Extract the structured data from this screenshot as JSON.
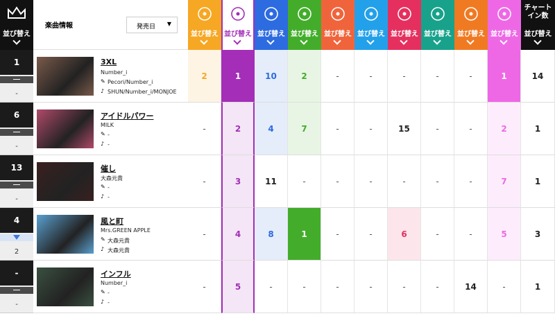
{
  "sidebar": {
    "sort_label": "並び替え"
  },
  "header": {
    "info_label": "楽曲情報",
    "release_label": "発売日"
  },
  "columns": [
    {
      "color": "#f6a723",
      "label": "並び替え"
    },
    {
      "color": "#a42eb8",
      "label": "並び替え",
      "selected": true
    },
    {
      "color": "#2d6be0",
      "label": "並び替え"
    },
    {
      "color": "#43ad2b",
      "label": "並び替え"
    },
    {
      "color": "#f0643c",
      "label": "並び替え"
    },
    {
      "color": "#23a0ea",
      "label": "並び替え"
    },
    {
      "color": "#e5305f",
      "label": "並び替え"
    },
    {
      "color": "#18a28b",
      "label": "並び替え"
    },
    {
      "color": "#f07a22",
      "label": "並び替え"
    },
    {
      "color": "#ee68e6",
      "label": "並び替え"
    },
    {
      "color": "#111111",
      "title": "チャートイン数",
      "label": "並び替え"
    }
  ],
  "rows": [
    {
      "rank": 1,
      "last_week": "-",
      "title": "3XL",
      "artist": "Number_i",
      "lyricist": "Pecori/Number_i",
      "composer": "SHUN/Number_i/MONJOE",
      "cells": [
        2,
        1,
        10,
        2,
        "-",
        "-",
        "-",
        "-",
        "-",
        1,
        14
      ]
    },
    {
      "rank": 6,
      "last_week": "-",
      "title": "アイドルパワー",
      "artist": "MILK",
      "lyricist": "-",
      "composer": "-",
      "cells": [
        "-",
        2,
        4,
        7,
        "-",
        "-",
        15,
        "-",
        "-",
        2,
        1
      ]
    },
    {
      "rank": 13,
      "last_week": "-",
      "title": "催し",
      "artist": "大森元貴",
      "lyricist": "-",
      "composer": "-",
      "cells": [
        "-",
        3,
        11,
        "-",
        "-",
        "-",
        "-",
        "-",
        "-",
        7,
        1
      ]
    },
    {
      "rank": 4,
      "last_week": 2,
      "title": "風と町",
      "artist": "Mrs.GREEN APPLE",
      "lyricist": "大森元貴",
      "composer": "大森元貴",
      "cells": [
        "-",
        4,
        8,
        1,
        "-",
        "-",
        6,
        "-",
        "-",
        5,
        3
      ]
    },
    {
      "rank": "-",
      "last_week": "-",
      "title": "インフル",
      "artist": "Number_i",
      "lyricist": "-",
      "composer": "-",
      "cells": [
        "-",
        5,
        "-",
        "-",
        "-",
        "-",
        "-",
        "-",
        14,
        "-",
        1
      ]
    }
  ]
}
